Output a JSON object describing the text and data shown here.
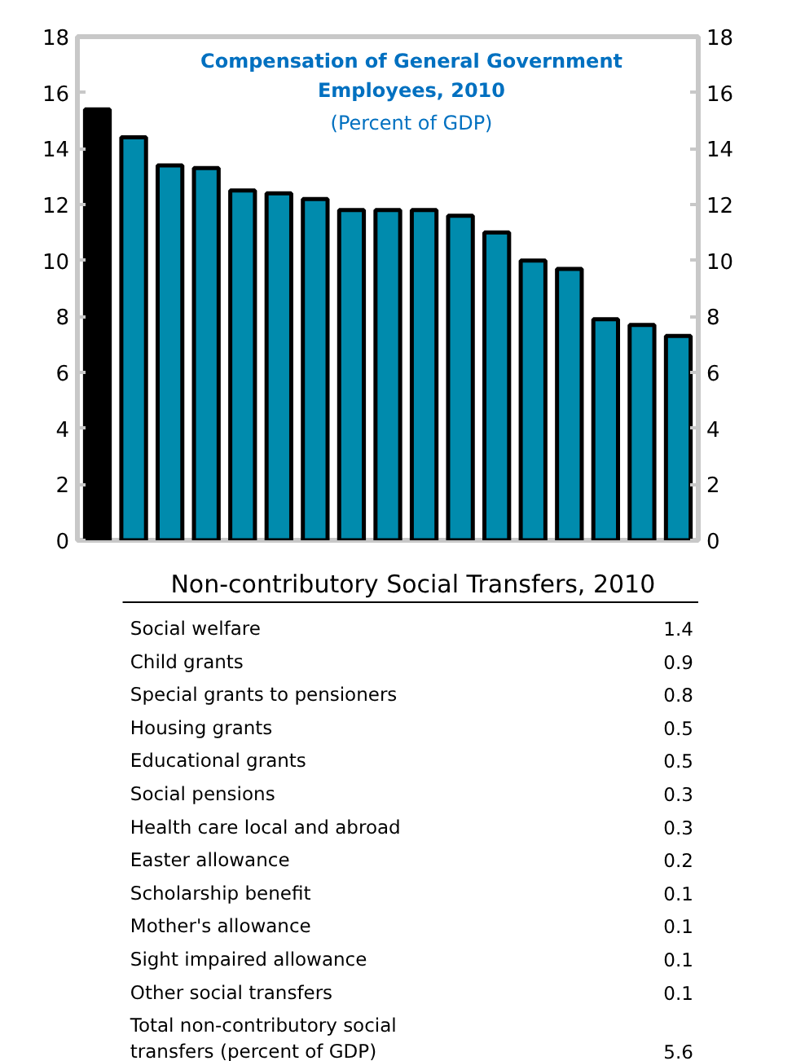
{
  "chart_data": [
    {
      "type": "bar",
      "title": "Compensation of General Government Employees, 2010",
      "subtitle": "(Percent of GDP)",
      "categories": [
        null,
        null,
        null,
        null,
        null,
        null,
        null,
        null,
        null,
        null,
        null,
        null,
        null,
        null,
        null,
        null,
        null
      ],
      "values": [
        15.4,
        14.4,
        13.4,
        13.3,
        12.5,
        12.4,
        12.2,
        11.8,
        11.8,
        11.8,
        11.6,
        11.0,
        10.0,
        9.7,
        7.9,
        7.7,
        7.3
      ],
      "colors": [
        "#000000",
        "#008bad",
        "#008bad",
        "#008bad",
        "#008bad",
        "#008bad",
        "#008bad",
        "#008bad",
        "#008bad",
        "#008bad",
        "#008bad",
        "#008bad",
        "#008bad",
        "#008bad",
        "#008bad",
        "#008bad",
        "#008bad"
      ],
      "ylim": [
        0,
        18
      ],
      "yticks": [
        0,
        2,
        4,
        6,
        8,
        10,
        12,
        14,
        16,
        18
      ],
      "y2lim": [
        0,
        18
      ],
      "y2ticks": [
        0,
        2,
        4,
        6,
        8,
        10,
        12,
        14,
        16,
        18
      ],
      "grid": false
    },
    {
      "type": "other",
      "title": "Non-contributory Social Transfers, 2010",
      "categories": [
        "Social welfare",
        "Child grants",
        "Special grants to pensioners",
        "Housing grants",
        "Educational grants",
        "Social pensions",
        "Health care local and abroad",
        "Easter allowance",
        "Scholarship benefit",
        "Mother's allowance",
        "Sight impaired allowance",
        "Other social transfers",
        "Total non-contributory social\ntransfers (percent of GDP)"
      ],
      "values": [
        1.4,
        0.9,
        0.8,
        0.5,
        0.5,
        0.3,
        0.3,
        0.2,
        0.1,
        0.1,
        0.1,
        0.1,
        5.6
      ],
      "data_labels": true
    }
  ]
}
